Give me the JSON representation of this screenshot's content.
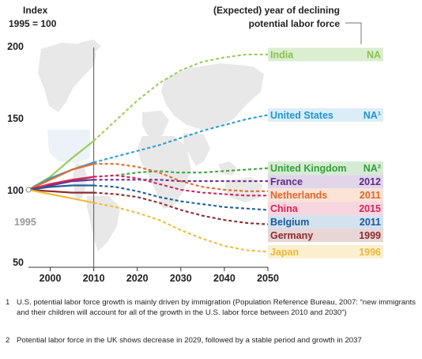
{
  "chart_data": {
    "type": "line",
    "title": "",
    "ylabel": "Index 1995 = 100",
    "ylabel_lines": [
      "Index",
      "1995 = 100"
    ],
    "legend_header": "(Expected) year of declining potential labor force",
    "legend_header_lines": [
      "(Expected) year of declining",
      "potential labor force"
    ],
    "xlim": [
      1995,
      2050
    ],
    "ylim": [
      50,
      200
    ],
    "x_ticks": [
      "2000",
      "2010",
      "2020",
      "2030",
      "2040",
      "2050"
    ],
    "y_ticks": [
      "50",
      "100",
      "150",
      "200"
    ],
    "start_label": "1995",
    "actual_until": 2010,
    "background": "world map (faint)",
    "series": [
      {
        "name": "India",
        "decline": "NA",
        "color": "#9ccd5e",
        "label_color": "#8cc04f",
        "box_color": "#dbeed0",
        "actual": [
          [
            1995,
            100
          ],
          [
            2000,
            109
          ],
          [
            2005,
            122
          ],
          [
            2010,
            134
          ]
        ],
        "projected": [
          [
            2010,
            134
          ],
          [
            2015,
            148
          ],
          [
            2020,
            162
          ],
          [
            2025,
            174
          ],
          [
            2030,
            183
          ],
          [
            2035,
            189
          ],
          [
            2040,
            192
          ],
          [
            2045,
            194
          ],
          [
            2050,
            194
          ]
        ]
      },
      {
        "name": "United States",
        "decline": "NA¹",
        "color": "#2a9fd8",
        "label_color": "#1f95d2",
        "box_color": "#dbeef8",
        "actual": [
          [
            1995,
            100
          ],
          [
            2000,
            108
          ],
          [
            2005,
            114
          ],
          [
            2010,
            119
          ]
        ],
        "projected": [
          [
            2010,
            119
          ],
          [
            2015,
            123
          ],
          [
            2020,
            127
          ],
          [
            2025,
            131
          ],
          [
            2030,
            136
          ],
          [
            2035,
            141
          ],
          [
            2040,
            145
          ],
          [
            2045,
            149
          ],
          [
            2050,
            152
          ]
        ]
      },
      {
        "name": "United Kingdom",
        "decline": "NA²",
        "color": "#3fa63f",
        "label_color": "#33a03a",
        "box_color": "#d6ebd3",
        "actual": [
          [
            1995,
            100
          ],
          [
            2000,
            103
          ],
          [
            2005,
            106
          ],
          [
            2010,
            109
          ]
        ],
        "projected": [
          [
            2010,
            109
          ],
          [
            2015,
            110
          ],
          [
            2020,
            112
          ],
          [
            2025,
            113
          ],
          [
            2029,
            112
          ],
          [
            2032,
            112
          ],
          [
            2035,
            112
          ],
          [
            2040,
            113
          ],
          [
            2045,
            114
          ],
          [
            2050,
            115
          ]
        ]
      },
      {
        "name": "France",
        "decline": "2012",
        "color": "#6e2e91",
        "label_color": "#5e2b86",
        "box_color": "#e1d5ea",
        "actual": [
          [
            1995,
            100
          ],
          [
            2000,
            103
          ],
          [
            2005,
            106
          ],
          [
            2010,
            107
          ]
        ],
        "projected": [
          [
            2010,
            107
          ],
          [
            2015,
            107
          ],
          [
            2020,
            107
          ],
          [
            2025,
            107
          ],
          [
            2030,
            106
          ],
          [
            2040,
            106
          ],
          [
            2050,
            106
          ]
        ]
      },
      {
        "name": "Netherlands",
        "decline": "2011",
        "color": "#e36a2e",
        "label_color": "#e0662a",
        "box_color": "#fbe3d5",
        "actual": [
          [
            1995,
            100
          ],
          [
            2000,
            107
          ],
          [
            2005,
            114
          ],
          [
            2010,
            118
          ]
        ],
        "projected": [
          [
            2010,
            118
          ],
          [
            2015,
            118
          ],
          [
            2020,
            116
          ],
          [
            2025,
            112
          ],
          [
            2030,
            106
          ],
          [
            2035,
            102
          ],
          [
            2040,
            100
          ],
          [
            2045,
            99
          ],
          [
            2050,
            99
          ]
        ]
      },
      {
        "name": "China",
        "decline": "2015",
        "color": "#d8245a",
        "label_color": "#d8245a",
        "box_color": "#f7d6e0",
        "actual": [
          [
            1995,
            100
          ],
          [
            2000,
            104
          ],
          [
            2005,
            107
          ],
          [
            2010,
            109
          ]
        ],
        "projected": [
          [
            2010,
            109
          ],
          [
            2015,
            110
          ],
          [
            2020,
            108
          ],
          [
            2025,
            104
          ],
          [
            2030,
            100
          ],
          [
            2035,
            98
          ],
          [
            2040,
            97
          ],
          [
            2045,
            96
          ],
          [
            2050,
            96
          ]
        ]
      },
      {
        "name": "Belgium",
        "decline": "2011",
        "color": "#1f5f9e",
        "label_color": "#1a5a9a",
        "box_color": "#d4e1ef",
        "actual": [
          [
            1995,
            100
          ],
          [
            2000,
            102
          ],
          [
            2005,
            103
          ],
          [
            2010,
            103
          ]
        ],
        "projected": [
          [
            2010,
            103
          ],
          [
            2015,
            102
          ],
          [
            2020,
            99
          ],
          [
            2025,
            95
          ],
          [
            2030,
            92
          ],
          [
            2035,
            90
          ],
          [
            2040,
            88
          ],
          [
            2045,
            87
          ],
          [
            2050,
            86
          ]
        ]
      },
      {
        "name": "Germany",
        "decline": "1999",
        "color": "#8c2b30",
        "label_color": "#8a2a2e",
        "box_color": "#e8d5d6",
        "actual": [
          [
            1995,
            100
          ],
          [
            2000,
            99
          ],
          [
            2005,
            98
          ],
          [
            2010,
            98
          ]
        ],
        "projected": [
          [
            2010,
            98
          ],
          [
            2015,
            97
          ],
          [
            2020,
            95
          ],
          [
            2025,
            91
          ],
          [
            2030,
            86
          ],
          [
            2035,
            82
          ],
          [
            2040,
            79
          ],
          [
            2045,
            77
          ],
          [
            2050,
            76
          ]
        ]
      },
      {
        "name": "Japan",
        "decline": "1996",
        "color": "#f0bb3c",
        "label_color": "#eeb93a",
        "box_color": "#fcefd0",
        "actual": [
          [
            1995,
            100
          ],
          [
            2000,
            97
          ],
          [
            2005,
            94
          ],
          [
            2010,
            91
          ]
        ],
        "projected": [
          [
            2010,
            91
          ],
          [
            2015,
            88
          ],
          [
            2020,
            84
          ],
          [
            2025,
            79
          ],
          [
            2030,
            72
          ],
          [
            2035,
            66
          ],
          [
            2040,
            61
          ],
          [
            2045,
            58
          ],
          [
            2050,
            57
          ]
        ]
      }
    ]
  },
  "footnotes": [
    {
      "num": "1",
      "text": "U.S. potential labor force growth is mainly driven by immigration (Population Reference Bureau, 2007: “new immigrants and their children will account for all of the growth in the U.S. labor force between 2010 and 2030”)"
    },
    {
      "num": "2",
      "text": "Potential labor force in the UK shows decrease in 2029, followed by a stable period and growth in 2037"
    }
  ]
}
